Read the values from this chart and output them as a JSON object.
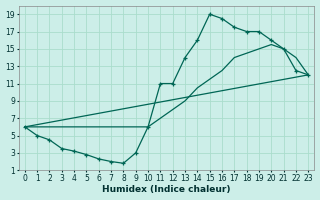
{
  "xlabel": "Humidex (Indice chaleur)",
  "background_color": "#cceee8",
  "grid_color": "#aaddcc",
  "line_color": "#006655",
  "xlim": [
    -0.5,
    23.5
  ],
  "ylim": [
    1,
    20
  ],
  "xticks": [
    0,
    1,
    2,
    3,
    4,
    5,
    6,
    7,
    8,
    9,
    10,
    11,
    12,
    13,
    14,
    15,
    16,
    17,
    18,
    19,
    20,
    21,
    22,
    23
  ],
  "yticks": [
    1,
    3,
    5,
    7,
    9,
    11,
    13,
    15,
    17,
    19
  ],
  "line1_x": [
    0,
    1,
    2,
    3,
    4,
    5,
    6,
    7,
    8,
    9,
    10,
    11,
    12,
    13,
    14,
    15,
    16,
    17,
    18,
    19,
    20,
    21,
    22,
    23
  ],
  "line1_y": [
    6,
    5,
    4.5,
    3.5,
    3.2,
    2.8,
    2.3,
    2,
    1.8,
    3,
    6,
    11,
    11,
    14,
    16,
    19,
    18.5,
    17.5,
    17,
    17,
    16,
    15,
    12.5,
    12
  ],
  "line2_x": [
    0,
    10,
    11,
    12,
    13,
    14,
    15,
    16,
    17,
    18,
    19,
    20,
    21,
    22,
    23
  ],
  "line2_y": [
    6,
    6,
    7,
    8,
    9,
    10.5,
    11.5,
    12.5,
    14,
    14.5,
    15,
    15.5,
    15,
    14,
    12
  ],
  "line3_x": [
    0,
    23
  ],
  "line3_y": [
    6,
    12
  ]
}
